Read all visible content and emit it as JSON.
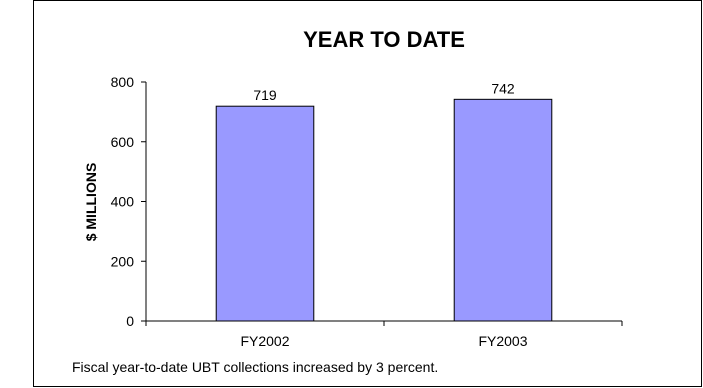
{
  "chart_data": {
    "type": "bar",
    "title": "YEAR TO DATE",
    "xlabel": "",
    "ylabel": "$ MILLIONS",
    "categories": [
      "FY2002",
      "FY2003"
    ],
    "values": [
      719,
      742
    ],
    "data_labels": [
      "719",
      "742"
    ],
    "ylim": [
      0,
      800
    ],
    "yticks": [
      0,
      200,
      400,
      600,
      800
    ],
    "grid": false,
    "legend": "none",
    "bar_color": "#9999ff",
    "bar_edge_color": "#000000"
  },
  "caption": "Fiscal year-to-date UBT collections increased by 3 percent."
}
